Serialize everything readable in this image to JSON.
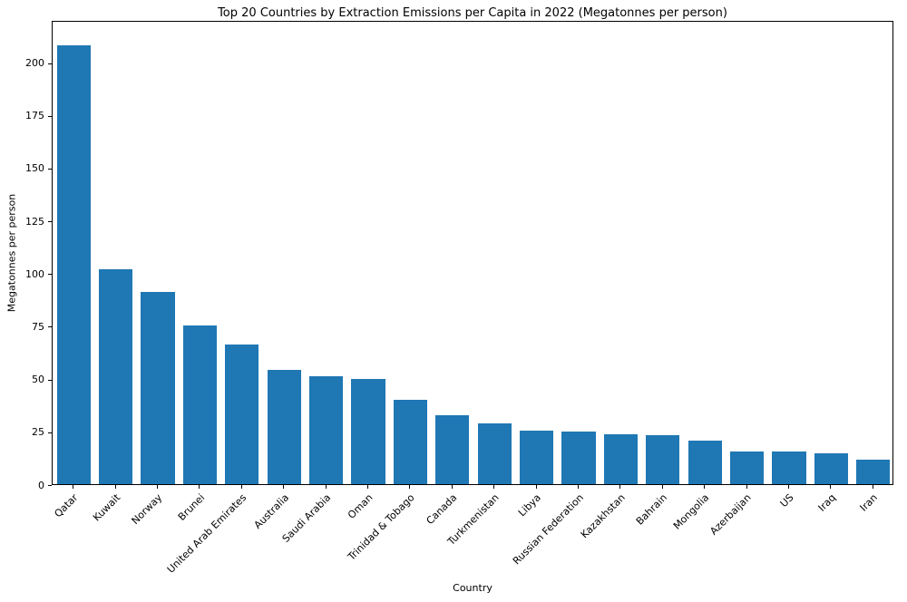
{
  "chart_data": {
    "type": "bar",
    "title": "Top 20 Countries by Extraction Emissions per Capita in 2022 (Megatonnes per person)",
    "xlabel": "Country",
    "ylabel": "Megatonnes per person",
    "categories": [
      "Qatar",
      "Kuwait",
      "Norway",
      "Brunei",
      "United Arab Emirates",
      "Australia",
      "Saudi Arabia",
      "Oman",
      "Trinidad & Tobago",
      "Canada",
      "Turkmenistan",
      "Libya",
      "Russian Federation",
      "Kazakhstan",
      "Bahrain",
      "Mongolia",
      "Azerbaijan",
      "US",
      "Iraq",
      "Iran"
    ],
    "values": [
      208,
      102,
      91,
      75,
      66,
      54,
      51,
      50,
      40,
      32.5,
      29,
      25.5,
      25,
      23.5,
      23,
      20.5,
      15.5,
      15.5,
      14.5,
      11.5
    ],
    "bar_color": "#1f77b4",
    "ylim": [
      0,
      220
    ],
    "yticks": [
      0,
      25,
      50,
      75,
      100,
      125,
      150,
      175,
      200
    ],
    "grid": false,
    "legend_position": "none"
  }
}
